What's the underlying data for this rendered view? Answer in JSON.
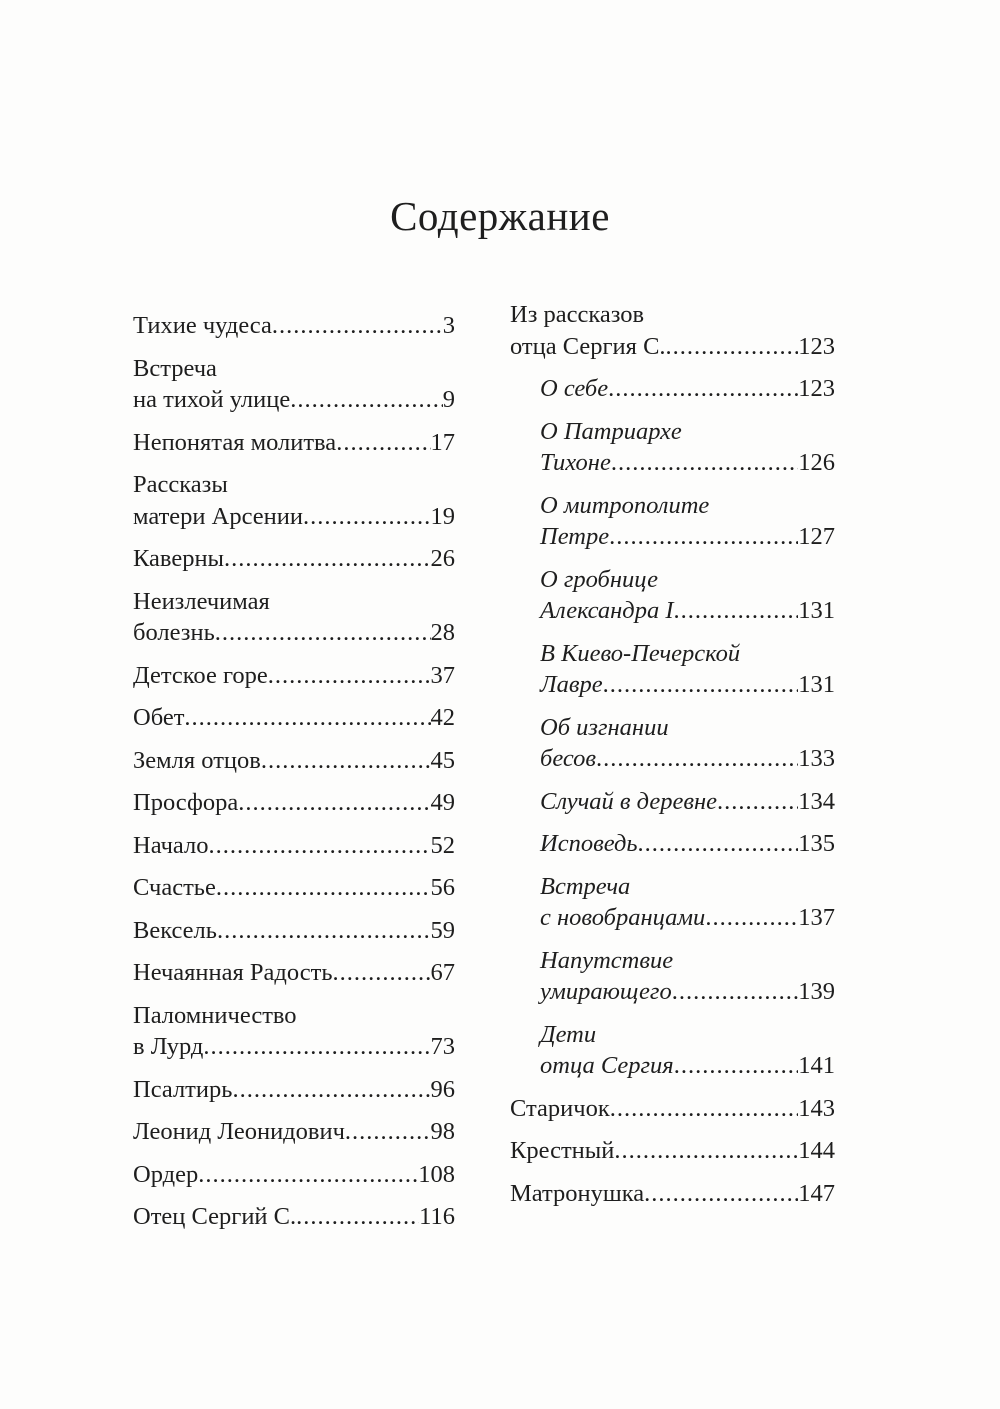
{
  "title": "Содержание",
  "left": [
    {
      "lines": [
        "Тихие чудеса"
      ],
      "page": "3"
    },
    {
      "lines": [
        "Встреча",
        "на тихой улице"
      ],
      "page": "9"
    },
    {
      "lines": [
        "Непонятая молитва"
      ],
      "page": "17"
    },
    {
      "lines": [
        "Рассказы",
        "матери Арсении"
      ],
      "page": "19"
    },
    {
      "lines": [
        "Каверны"
      ],
      "page": "26"
    },
    {
      "lines": [
        "Неизлечимая",
        "болезнь"
      ],
      "page": "28"
    },
    {
      "lines": [
        "Детское горе"
      ],
      "page": "37"
    },
    {
      "lines": [
        "Обет"
      ],
      "page": "42"
    },
    {
      "lines": [
        "Земля отцов"
      ],
      "page": "45"
    },
    {
      "lines": [
        "Просфора"
      ],
      "page": "49"
    },
    {
      "lines": [
        "Начало"
      ],
      "page": "52"
    },
    {
      "lines": [
        "Счастье"
      ],
      "page": "56"
    },
    {
      "lines": [
        "Вексель"
      ],
      "page": "59"
    },
    {
      "lines": [
        "Нечаянная Радость"
      ],
      "page": "67"
    },
    {
      "lines": [
        "Паломничество",
        "в Лурд"
      ],
      "page": "73"
    },
    {
      "lines": [
        "Псалтирь"
      ],
      "page": "96"
    },
    {
      "lines": [
        "Леонид Леонидович"
      ],
      "page": "98"
    },
    {
      "lines": [
        "Ордер"
      ],
      "page": "108"
    },
    {
      "lines": [
        "Отец Сергий С."
      ],
      "page": "116"
    }
  ],
  "right": [
    {
      "lines": [
        "Из рассказов",
        "отца Сергия С."
      ],
      "page": "123",
      "italic": false
    },
    {
      "lines": [
        "О себе"
      ],
      "page": "123",
      "italic": true
    },
    {
      "lines": [
        "О Патриархе",
        "Тихоне"
      ],
      "page": "126",
      "italic": true
    },
    {
      "lines": [
        "О митрополите",
        "Петре"
      ],
      "page": "127",
      "italic": true
    },
    {
      "lines": [
        "О гробнице",
        "Александра I"
      ],
      "page": "131",
      "italic": true
    },
    {
      "lines": [
        "В Киево-Печерской",
        "Лавре"
      ],
      "page": "131",
      "italic": true
    },
    {
      "lines": [
        "Об изгнании",
        "бесов"
      ],
      "page": "133",
      "italic": true
    },
    {
      "lines": [
        "Случай в деревне"
      ],
      "page": "134",
      "italic": true
    },
    {
      "lines": [
        "Исповедь"
      ],
      "page": "135",
      "italic": true
    },
    {
      "lines": [
        "Встреча",
        "с новобранцами"
      ],
      "page": "137",
      "italic": true
    },
    {
      "lines": [
        "Напутствие",
        "умирающего"
      ],
      "page": "139",
      "italic": true
    },
    {
      "lines": [
        "Дети",
        "отца Сергия"
      ],
      "page": "141",
      "italic": true
    },
    {
      "lines": [
        "Старичок"
      ],
      "page": "143",
      "italic": false
    },
    {
      "lines": [
        "Крестный"
      ],
      "page": "144",
      "italic": false
    },
    {
      "lines": [
        "Матронушка"
      ],
      "page": "147",
      "italic": false
    }
  ]
}
